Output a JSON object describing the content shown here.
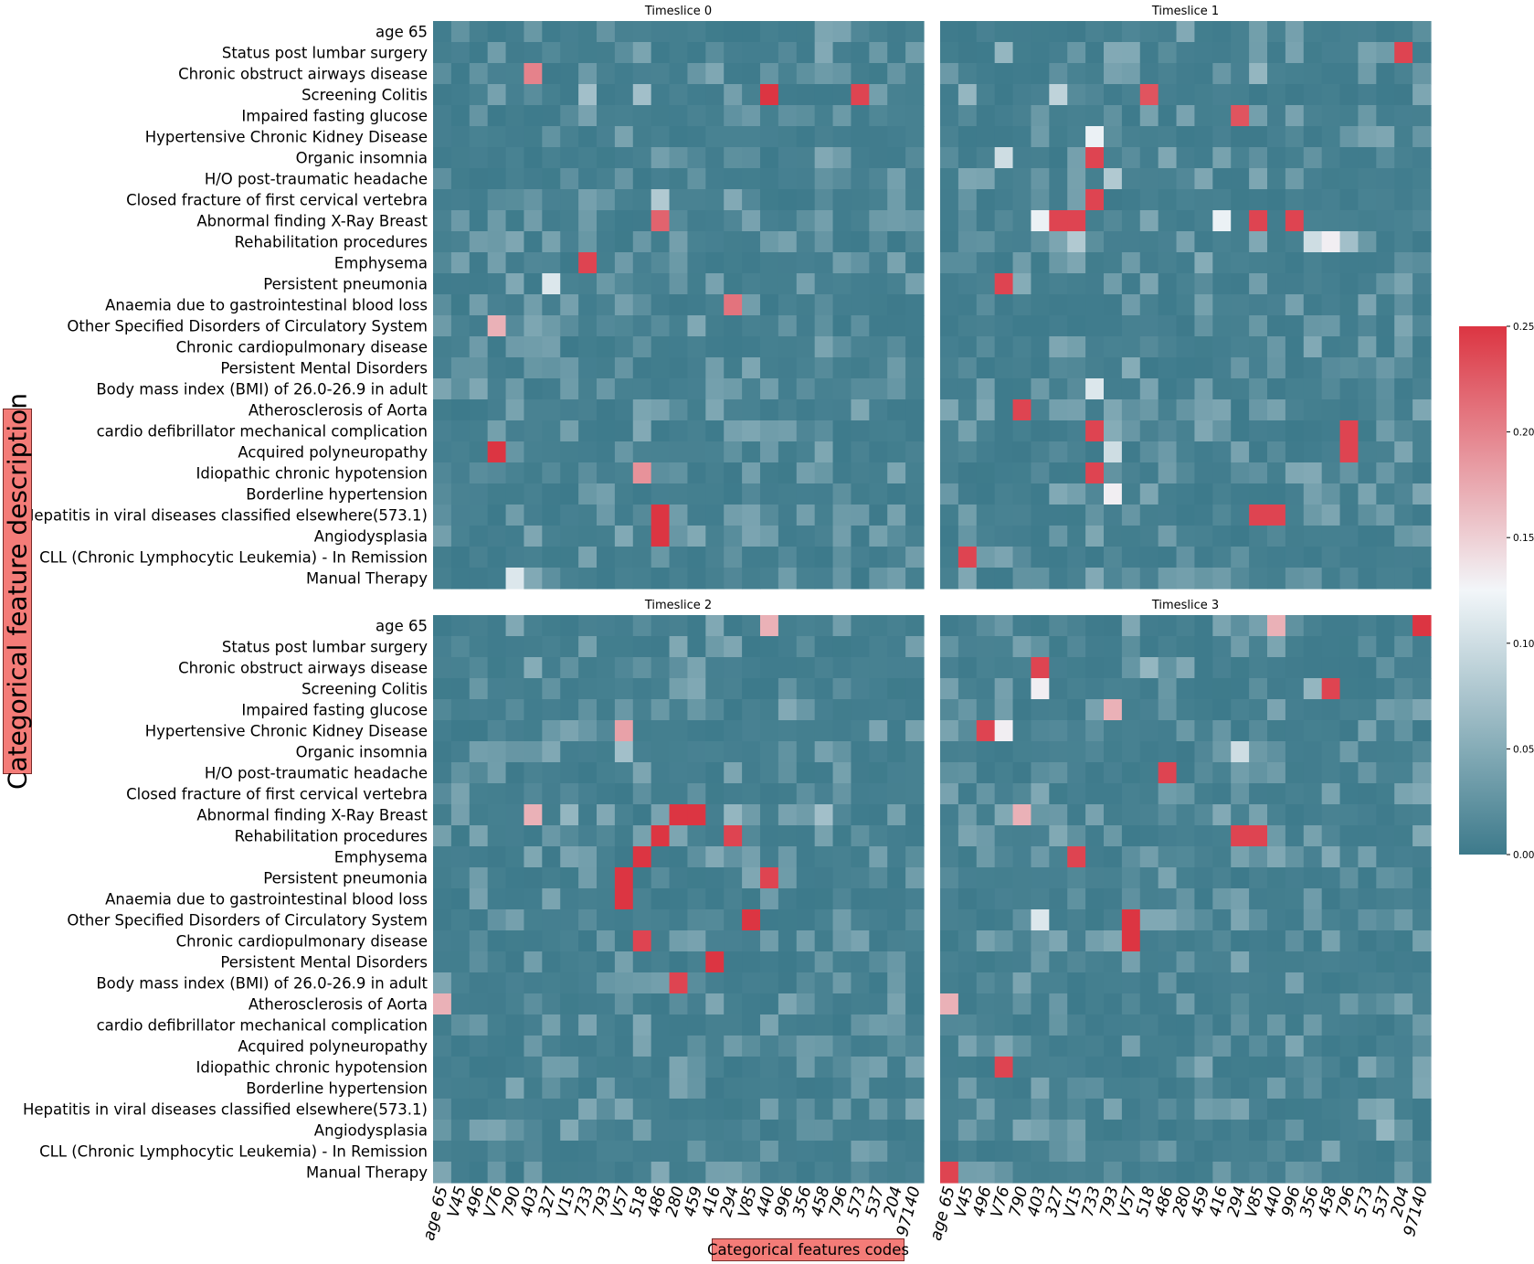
{
  "chart_data": {
    "type": "heatmap",
    "ylabel": "Categorical feature description",
    "xlabel": "Categorical features codes",
    "rows": [
      "age 65",
      "Status post lumbar surgery",
      "Chronic obstruct airways disease",
      "Screening Colitis",
      "Impaired fasting glucose",
      "Hypertensive Chronic Kidney Disease",
      "Organic insomnia",
      "H/O post-traumatic headache",
      "Closed fracture of first cervical vertebra",
      "Abnormal finding X-Ray Breast",
      "Rehabilitation procedures",
      "Emphysema",
      "Persistent pneumonia",
      "Anaemia due to gastrointestinal blood loss",
      "Other Specified Disorders of Circulatory System",
      "Chronic cardiopulmonary disease",
      "Persistent Mental Disorders",
      "Body mass index (BMI) of 26.0-26.9 in adult",
      "Atherosclerosis of Aorta",
      "cardio defibrillator mechanical complication",
      "Acquired polyneuropathy",
      "Idiopathic chronic hypotension",
      "Borderline hypertension",
      "Hepatitis in viral diseases classified elsewhere(573.1)",
      "Angiodysplasia",
      "CLL (Chronic Lymphocytic Leukemia) - In Remission",
      "Manual Therapy"
    ],
    "panels": [
      {
        "title": "Timeslice 0",
        "columns": [
          "age 65",
          "V45",
          "496",
          "V76",
          "790",
          "403",
          "327",
          "V15",
          "733",
          "793",
          "V57",
          "518",
          "486",
          "280",
          "459",
          "416",
          "294",
          "V85",
          "440",
          "996",
          "356",
          "458",
          "796",
          "573",
          "537",
          "204",
          "97140"
        ],
        "cells": [
          [
            3,
            18,
            0.25
          ],
          [
            2,
            5,
            0.2
          ],
          [
            3,
            23,
            0.24
          ],
          [
            8,
            12,
            0.08
          ],
          [
            3,
            11,
            0.07
          ],
          [
            3,
            8,
            0.07
          ],
          [
            11,
            8,
            0.24
          ],
          [
            9,
            12,
            0.22
          ],
          [
            12,
            6,
            0.11
          ],
          [
            13,
            16,
            0.21
          ],
          [
            14,
            3,
            0.17
          ],
          [
            20,
            3,
            0.25
          ],
          [
            21,
            11,
            0.19
          ],
          [
            23,
            12,
            0.25
          ],
          [
            24,
            12,
            0.25
          ],
          [
            26,
            4,
            0.11
          ],
          [
            1,
            10,
            0.02
          ]
        ],
        "cells_note": ""
      },
      {
        "title": "Timeslice 1",
        "columns": [
          "age 65",
          "V45",
          "496",
          "V76",
          "790",
          "403",
          "327",
          "V15",
          "733",
          "793",
          "V57",
          "518",
          "486",
          "280",
          "459",
          "416",
          "294",
          "V85",
          "440",
          "996",
          "356",
          "458",
          "796",
          "573",
          "537",
          "204",
          "97140"
        ],
        "cells": []
      },
      {
        "title": "Timeslice 2",
        "columns": [
          "age 65",
          "V45",
          "496",
          "V76",
          "790",
          "403",
          "327",
          "V15",
          "733",
          "793",
          "V57",
          "518",
          "486",
          "280",
          "459",
          "416",
          "294",
          "V85",
          "440",
          "996",
          "356",
          "458",
          "796",
          "573",
          "537",
          "204",
          "97140"
        ],
        "cells": []
      },
      {
        "title": "Timeslice 3",
        "columns": [
          "age 65",
          "V45",
          "496",
          "V76",
          "790",
          "403",
          "327",
          "V15",
          "733",
          "793",
          "V57",
          "518",
          "486",
          "280",
          "459",
          "416",
          "294",
          "V85",
          "440",
          "996",
          "356",
          "458",
          "796",
          "573",
          "537",
          "204",
          "97140"
        ],
        "cells": []
      }
    ],
    "colorbar": {
      "min": 0.0,
      "max": 0.25,
      "ticks": [
        "0.00",
        "0.05",
        "0.10",
        "0.15",
        "0.20",
        "0.25"
      ],
      "colors": [
        "#3d7a8b",
        "#f2f6f9",
        "#dc3542"
      ]
    }
  }
}
